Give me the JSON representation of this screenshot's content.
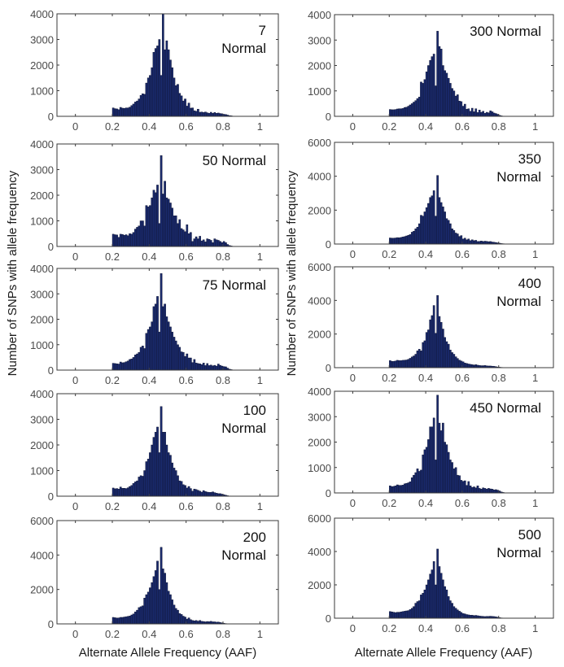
{
  "figure": {
    "ylabel": "Number of SNPs with allele frequency",
    "xlabel_left": "Alternate Allele Frequency (AAF)",
    "xlabel_right": "Alternate Allele Frequency (AAF)",
    "bar_color": "#1a2a6c",
    "bar_edge_color": "#0a0f2a"
  },
  "chart_data": [
    {
      "type": "bar",
      "panel": "7 Normal",
      "label_lines": [
        "7",
        "Normal"
      ],
      "column": "left",
      "row": 0,
      "xlim": [
        -0.1,
        1.1
      ],
      "ylim": [
        0,
        4000
      ],
      "xticks": [
        0,
        0.2,
        0.4,
        0.6,
        0.8,
        1
      ],
      "yticks": [
        0,
        1000,
        2000,
        3000,
        4000
      ],
      "xlabel": "",
      "ylabel": "Number of SNPs with allele frequency",
      "bin_start": 0.2,
      "bin_width": 0.01,
      "values": [
        330,
        300,
        290,
        260,
        350,
        320,
        310,
        330,
        330,
        360,
        420,
        480,
        560,
        600,
        680,
        820,
        880,
        860,
        1300,
        1500,
        1600,
        1900,
        2500,
        2650,
        2750,
        3000,
        1600,
        4000,
        2600,
        2950,
        2600,
        2200,
        1900,
        1500,
        1200,
        1250,
        900,
        800,
        600,
        680,
        400,
        520,
        320,
        330,
        220,
        200,
        280,
        160,
        170,
        150,
        170,
        140,
        120,
        160,
        120,
        150,
        120,
        130,
        110,
        100,
        80,
        70,
        50,
        30,
        20,
        10,
        5,
        5,
        0,
        0
      ]
    },
    {
      "type": "bar",
      "panel": "300 Normal",
      "label_lines": [
        "300 Normal"
      ],
      "column": "right",
      "row": 0,
      "xlim": [
        -0.1,
        1.1
      ],
      "ylim": [
        0,
        4000
      ],
      "xticks": [
        0,
        0.2,
        0.4,
        0.6,
        0.8,
        1
      ],
      "yticks": [
        0,
        1000,
        2000,
        3000,
        4000
      ],
      "xlabel": "",
      "ylabel": "",
      "bin_start": 0.2,
      "bin_width": 0.01,
      "values": [
        270,
        260,
        260,
        270,
        290,
        300,
        300,
        310,
        350,
        360,
        400,
        450,
        500,
        560,
        620,
        700,
        760,
        1350,
        1300,
        1450,
        1750,
        2000,
        2200,
        2350,
        2450,
        1200,
        3350,
        2750,
        2650,
        2000,
        1800,
        1700,
        1500,
        1300,
        1100,
        1000,
        800,
        850,
        600,
        580,
        400,
        480,
        280,
        300,
        200,
        320,
        180,
        300,
        150,
        250,
        160,
        200,
        120,
        160,
        140,
        220,
        180,
        130,
        110,
        80,
        40,
        20,
        10,
        5,
        0,
        0,
        0,
        0,
        0,
        0
      ]
    },
    {
      "type": "bar",
      "panel": "50 Normal",
      "label_lines": [
        "50 Normal"
      ],
      "column": "left",
      "row": 1,
      "xlim": [
        -0.1,
        1.1
      ],
      "ylim": [
        0,
        4000
      ],
      "xticks": [
        0,
        0.2,
        0.4,
        0.6,
        0.8,
        1
      ],
      "yticks": [
        0,
        1000,
        2000,
        3000,
        4000
      ],
      "xlabel": "",
      "ylabel": "",
      "bin_start": 0.2,
      "bin_width": 0.01,
      "values": [
        480,
        460,
        450,
        360,
        480,
        470,
        440,
        460,
        420,
        500,
        480,
        550,
        680,
        750,
        800,
        1000,
        1000,
        800,
        1600,
        1550,
        1600,
        1900,
        2200,
        2100,
        2400,
        900,
        3550,
        2050,
        2550,
        1900,
        1850,
        1700,
        1500,
        1200,
        1200,
        900,
        1050,
        700,
        650,
        580,
        850,
        500,
        550,
        200,
        300,
        380,
        300,
        400,
        220,
        260,
        180,
        300,
        280,
        240,
        150,
        300,
        260,
        240,
        200,
        150,
        200,
        150,
        80,
        40,
        20,
        10,
        0,
        0,
        0,
        0
      ]
    },
    {
      "type": "bar",
      "panel": "350 Normal",
      "label_lines": [
        "350",
        "Normal"
      ],
      "column": "right",
      "row": 1,
      "xlim": [
        -0.1,
        1.1
      ],
      "ylim": [
        0,
        6000
      ],
      "xticks": [
        0,
        0.2,
        0.4,
        0.6,
        0.8,
        1
      ],
      "yticks": [
        0,
        2000,
        4000,
        6000
      ],
      "xlabel": "",
      "ylabel": "Number of SNPs with allele frequency",
      "bin_start": 0.2,
      "bin_width": 0.01,
      "values": [
        360,
        350,
        350,
        360,
        380,
        370,
        390,
        420,
        440,
        480,
        520,
        560,
        700,
        760,
        900,
        1000,
        1200,
        1700,
        1650,
        1900,
        2150,
        2400,
        2750,
        2850,
        3150,
        1650,
        4050,
        2750,
        2450,
        2200,
        1900,
        1500,
        1400,
        1200,
        900,
        800,
        650,
        600,
        450,
        500,
        300,
        350,
        250,
        300,
        200,
        250,
        200,
        220,
        150,
        160,
        180,
        150,
        170,
        160,
        140,
        150,
        120,
        110,
        90,
        70,
        50,
        30,
        20,
        10,
        0,
        0,
        0,
        0,
        0,
        0
      ]
    },
    {
      "type": "bar",
      "panel": "75 Normal",
      "label_lines": [
        "75 Normal"
      ],
      "column": "left",
      "row": 2,
      "xlim": [
        -0.1,
        1.1
      ],
      "ylim": [
        0,
        4000
      ],
      "xticks": [
        0,
        0.2,
        0.4,
        0.6,
        0.8,
        1
      ],
      "yticks": [
        0,
        1000,
        2000,
        3000,
        4000
      ],
      "xlabel": "",
      "ylabel": "",
      "bin_start": 0.2,
      "bin_width": 0.01,
      "values": [
        270,
        260,
        250,
        240,
        320,
        290,
        300,
        330,
        360,
        420,
        440,
        500,
        600,
        640,
        700,
        900,
        950,
        850,
        1450,
        1600,
        1700,
        1900,
        2500,
        2600,
        2900,
        1500,
        3800,
        2500,
        2600,
        2100,
        1900,
        1700,
        1500,
        1300,
        1150,
        1000,
        900,
        720,
        700,
        540,
        640,
        480,
        480,
        300,
        420,
        280,
        260,
        250,
        220,
        280,
        180,
        260,
        180,
        200,
        170,
        190,
        160,
        240,
        190,
        160,
        140,
        130,
        80,
        40,
        20,
        0,
        0,
        0,
        0,
        0
      ]
    },
    {
      "type": "bar",
      "panel": "400 Normal",
      "label_lines": [
        "400",
        "Normal"
      ],
      "column": "right",
      "row": 2,
      "xlim": [
        -0.1,
        1.1
      ],
      "ylim": [
        0,
        6000
      ],
      "xticks": [
        0,
        0.2,
        0.4,
        0.6,
        0.8,
        1
      ],
      "yticks": [
        0,
        2000,
        4000,
        6000
      ],
      "xlabel": "",
      "ylabel": "Number of SNPs with allele frequency",
      "bin_start": 0.2,
      "bin_width": 0.01,
      "values": [
        420,
        380,
        380,
        400,
        440,
        420,
        420,
        440,
        450,
        460,
        500,
        560,
        640,
        700,
        800,
        1000,
        1100,
        1000,
        1500,
        1600,
        2100,
        2250,
        2850,
        3100,
        3700,
        2050,
        4300,
        3050,
        2700,
        2300,
        1800,
        1550,
        1400,
        1050,
        900,
        800,
        650,
        550,
        450,
        400,
        350,
        280,
        250,
        220,
        200,
        180,
        160,
        180,
        150,
        130,
        120,
        120,
        130,
        110,
        100,
        100,
        90,
        80,
        60,
        40,
        30,
        20,
        10,
        0,
        0,
        0,
        0,
        0,
        0,
        0
      ]
    },
    {
      "type": "bar",
      "panel": "100 Normal",
      "label_lines": [
        "100",
        "Normal"
      ],
      "column": "left",
      "row": 3,
      "xlim": [
        -0.1,
        1.1
      ],
      "ylim": [
        0,
        4000
      ],
      "xticks": [
        0,
        0.2,
        0.4,
        0.6,
        0.8,
        1
      ],
      "yticks": [
        0,
        1000,
        2000,
        3000,
        4000
      ],
      "xlabel": "",
      "ylabel": "Number of SNPs with allele frequency",
      "bin_start": 0.2,
      "bin_width": 0.01,
      "values": [
        320,
        290,
        300,
        280,
        360,
        310,
        310,
        300,
        330,
        380,
        420,
        500,
        560,
        600,
        750,
        800,
        780,
        1000,
        1350,
        1450,
        1700,
        2000,
        2300,
        2500,
        2700,
        1700,
        3500,
        2500,
        2500,
        2000,
        1700,
        1600,
        1300,
        1100,
        1000,
        800,
        600,
        580,
        450,
        420,
        320,
        380,
        300,
        200,
        280,
        260,
        230,
        200,
        160,
        220,
        180,
        160,
        150,
        150,
        170,
        140,
        120,
        100,
        100,
        80,
        60,
        40,
        20,
        10,
        0,
        0,
        0,
        0,
        0,
        0
      ]
    },
    {
      "type": "bar",
      "panel": "450 Normal",
      "label_lines": [
        "450 Normal"
      ],
      "column": "right",
      "row": 3,
      "xlim": [
        -0.1,
        1.1
      ],
      "ylim": [
        0,
        4000
      ],
      "xticks": [
        0,
        0.2,
        0.4,
        0.6,
        0.8,
        1
      ],
      "yticks": [
        0,
        1000,
        2000,
        3000,
        4000
      ],
      "xlabel": "",
      "ylabel": "",
      "bin_start": 0.2,
      "bin_width": 0.01,
      "values": [
        280,
        250,
        260,
        280,
        320,
        300,
        300,
        310,
        360,
        380,
        400,
        440,
        600,
        700,
        800,
        950,
        850,
        900,
        1500,
        1700,
        1800,
        2100,
        2600,
        2600,
        2950,
        1300,
        3850,
        2750,
        2450,
        2750,
        2000,
        1900,
        1600,
        1300,
        1200,
        950,
        1000,
        700,
        680,
        500,
        460,
        480,
        300,
        450,
        280,
        220,
        240,
        200,
        280,
        180,
        150,
        200,
        180,
        150,
        180,
        160,
        150,
        120,
        130,
        110,
        80,
        40,
        20,
        10,
        0,
        0,
        0,
        0,
        0,
        0
      ]
    },
    {
      "type": "bar",
      "panel": "200 Normal",
      "label_lines": [
        "200",
        "Normal"
      ],
      "column": "left",
      "row": 4,
      "xlim": [
        -0.1,
        1.1
      ],
      "ylim": [
        0,
        6000
      ],
      "xticks": [
        0,
        0.2,
        0.4,
        0.6,
        0.8,
        1
      ],
      "yticks": [
        0,
        2000,
        4000,
        6000
      ],
      "xlabel": "Alternate Allele Frequency (AAF)",
      "ylabel": "",
      "bin_start": 0.2,
      "bin_width": 0.01,
      "values": [
        380,
        360,
        340,
        350,
        380,
        380,
        400,
        420,
        440,
        460,
        520,
        580,
        700,
        800,
        950,
        1000,
        1050,
        1500,
        1700,
        1850,
        2100,
        2400,
        2750,
        3100,
        3650,
        2000,
        4450,
        3200,
        2950,
        2400,
        1900,
        1700,
        1400,
        1100,
        900,
        800,
        600,
        550,
        450,
        400,
        280,
        350,
        250,
        200,
        180,
        200,
        160,
        200,
        150,
        140,
        120,
        140,
        130,
        150,
        120,
        120,
        100,
        110,
        80,
        60,
        40,
        20,
        10,
        0,
        0,
        0,
        0,
        0,
        0,
        0
      ]
    },
    {
      "type": "bar",
      "panel": "500 Normal",
      "label_lines": [
        "500",
        "Normal"
      ],
      "column": "right",
      "row": 4,
      "xlim": [
        -0.1,
        1.1
      ],
      "ylim": [
        0,
        6000
      ],
      "xticks": [
        0,
        0.2,
        0.4,
        0.6,
        0.8,
        1
      ],
      "yticks": [
        0,
        2000,
        4000,
        6000
      ],
      "xlabel": "Alternate Allele Frequency (AAF)",
      "ylabel": "",
      "bin_start": 0.2,
      "bin_width": 0.01,
      "values": [
        400,
        380,
        360,
        340,
        360,
        360,
        380,
        400,
        420,
        440,
        460,
        520,
        600,
        700,
        900,
        1000,
        1050,
        1400,
        1500,
        1700,
        2000,
        2300,
        2650,
        2900,
        3400,
        2000,
        4150,
        3100,
        2700,
        2300,
        1900,
        1700,
        1300,
        1050,
        900,
        700,
        600,
        500,
        420,
        350,
        280,
        260,
        220,
        200,
        180,
        180,
        160,
        170,
        150,
        130,
        120,
        110,
        100,
        110,
        110,
        120,
        110,
        100,
        80,
        60,
        40,
        20,
        10,
        0,
        0,
        0,
        0,
        0,
        0,
        0
      ]
    }
  ]
}
